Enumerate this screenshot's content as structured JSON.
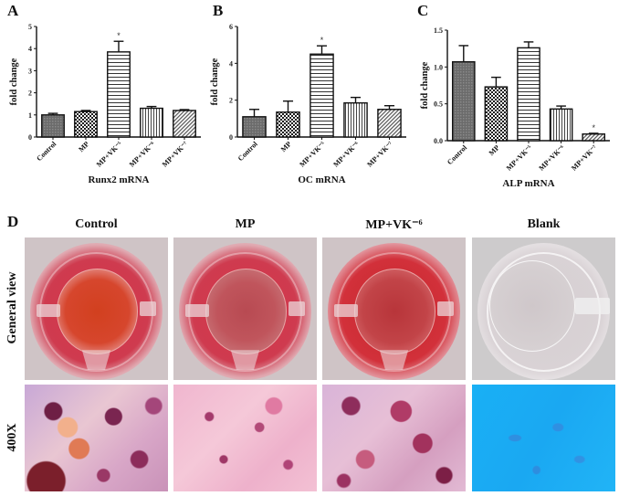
{
  "panels": {
    "A": "A",
    "B": "B",
    "C": "C",
    "D": "D"
  },
  "chart_data": [
    {
      "type": "bar",
      "panel": "A",
      "title": "",
      "xlabel": "Runx2 mRNA",
      "ylabel": "fold change",
      "ylim": [
        0,
        5
      ],
      "yticks": [
        0,
        1,
        2,
        3,
        4,
        5
      ],
      "categories": [
        "Control",
        "MP",
        "MP+VK⁻⁵",
        "MP+VK⁻⁶",
        "MP+VK⁻⁷"
      ],
      "values": [
        1.0,
        1.15,
        3.85,
        1.3,
        1.2
      ],
      "errors": [
        0.07,
        0.05,
        0.48,
        0.08,
        0.04
      ],
      "significance": [
        "",
        "",
        "*",
        "",
        ""
      ],
      "patterns": [
        "crosshatch-dark",
        "checker",
        "horizontal-lines",
        "vertical-lines",
        "diagonal-lines"
      ],
      "grid": false,
      "legend": "none"
    },
    {
      "type": "bar",
      "panel": "B",
      "title": "",
      "xlabel": "OC mRNA",
      "ylabel": "fold change",
      "ylim": [
        0,
        6
      ],
      "yticks": [
        0,
        2,
        4,
        6
      ],
      "categories": [
        "Control",
        "MP",
        "MP+VK⁻⁵",
        "MP+VK⁻⁶",
        "MP+VK⁻⁷"
      ],
      "values": [
        1.1,
        1.35,
        4.5,
        1.85,
        1.5
      ],
      "errors": [
        0.4,
        0.6,
        0.45,
        0.3,
        0.2
      ],
      "significance": [
        "",
        "",
        "*",
        "",
        ""
      ],
      "patterns": [
        "crosshatch-dark",
        "checker",
        "horizontal-lines",
        "vertical-lines",
        "diagonal-lines"
      ],
      "grid": false,
      "legend": "none"
    },
    {
      "type": "bar",
      "panel": "C",
      "title": "",
      "xlabel": "ALP mRNA",
      "ylabel": "fold change",
      "ylim": [
        0,
        1.5
      ],
      "yticks": [
        0.0,
        0.5,
        1.0,
        1.5
      ],
      "yticklabels": [
        "0.0",
        "0.5",
        "1.0",
        "1.5"
      ],
      "categories": [
        "Control",
        "MP",
        "MP+VK⁻⁵",
        "MP+VK⁻⁶",
        "MP+VK⁻⁷"
      ],
      "values": [
        1.07,
        0.73,
        1.26,
        0.43,
        0.09
      ],
      "errors": [
        0.22,
        0.13,
        0.08,
        0.04,
        0.01
      ],
      "significance": [
        "",
        "",
        "",
        "",
        "*"
      ],
      "patterns": [
        "crosshatch-dark",
        "checker",
        "horizontal-lines",
        "vertical-lines",
        "diagonal-lines"
      ],
      "grid": false,
      "legend": "none"
    }
  ],
  "photo_grid": {
    "columns": [
      "Control",
      "MP",
      "MP+VK⁻⁶",
      "Blank"
    ],
    "rows": [
      "General view",
      "400X"
    ]
  }
}
